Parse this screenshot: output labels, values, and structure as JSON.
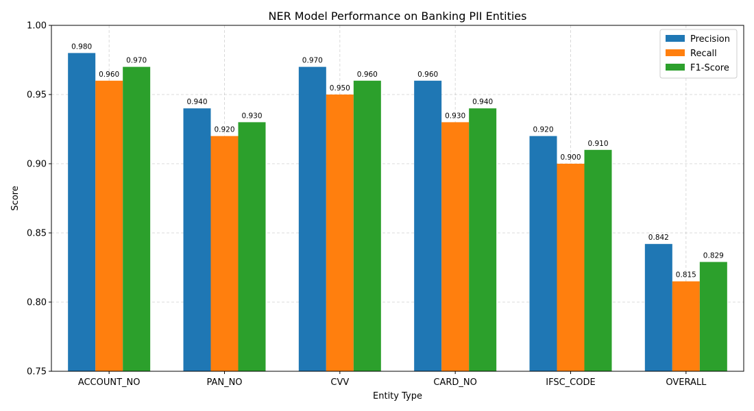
{
  "chart_data": {
    "type": "bar",
    "title": "NER Model Performance on Banking PII Entities",
    "xlabel": "Entity Type",
    "ylabel": "Score",
    "ylim": [
      0.75,
      1.0
    ],
    "yticks": [
      0.75,
      0.8,
      0.85,
      0.9,
      0.95,
      1.0
    ],
    "ytick_labels": [
      "0.75",
      "0.80",
      "0.85",
      "0.90",
      "0.95",
      "1.00"
    ],
    "grid": true,
    "legend_position": "top-right",
    "categories": [
      "ACCOUNT_NO",
      "PAN_NO",
      "CVV",
      "CARD_NO",
      "IFSC_CODE",
      "OVERALL"
    ],
    "series": [
      {
        "name": "Precision",
        "color": "#1f77b4",
        "values": [
          0.98,
          0.94,
          0.97,
          0.96,
          0.92,
          0.842
        ],
        "labels": [
          "0.980",
          "0.940",
          "0.970",
          "0.960",
          "0.920",
          "0.842"
        ]
      },
      {
        "name": "Recall",
        "color": "#ff7f0e",
        "values": [
          0.96,
          0.92,
          0.95,
          0.93,
          0.9,
          0.815
        ],
        "labels": [
          "0.960",
          "0.920",
          "0.950",
          "0.930",
          "0.900",
          "0.815"
        ]
      },
      {
        "name": "F1-Score",
        "color": "#2ca02c",
        "values": [
          0.97,
          0.93,
          0.96,
          0.94,
          0.91,
          0.829
        ],
        "labels": [
          "0.970",
          "0.930",
          "0.960",
          "0.940",
          "0.910",
          "0.829"
        ]
      }
    ]
  }
}
